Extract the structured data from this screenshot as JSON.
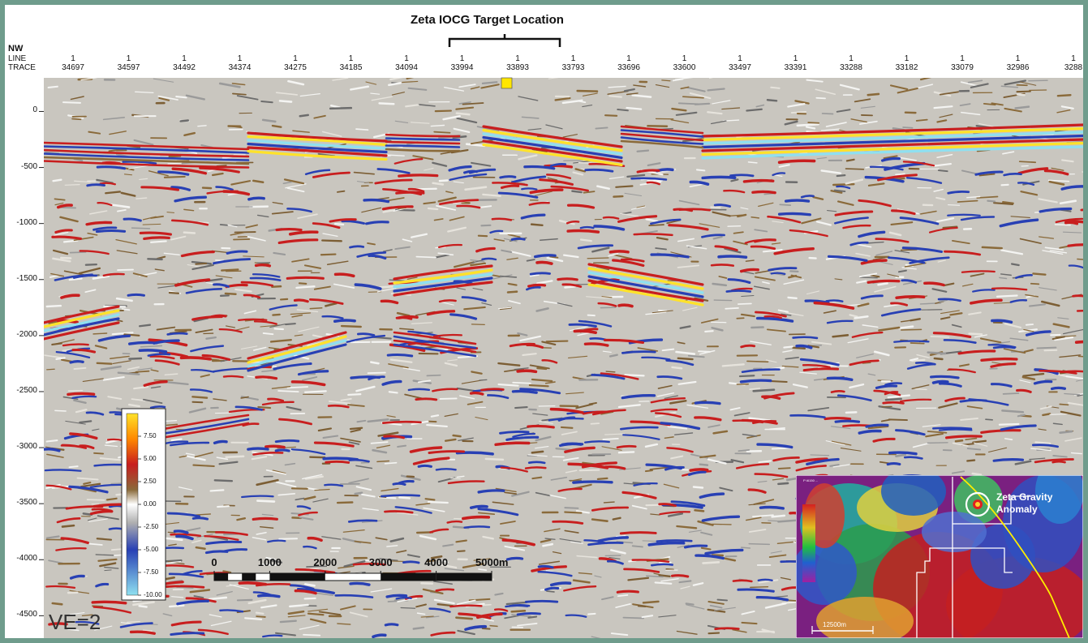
{
  "title": "Zeta IOCG Target Location",
  "direction": "NW",
  "row_labels": {
    "line": "LINE",
    "trace": "TRACE"
  },
  "ve_label": "VE=2",
  "colors": {
    "frame": "#6f9c8c",
    "red": "#c81e1e",
    "blue": "#2840b4",
    "yellow": "#ffe22a",
    "cyan": "#8fe0f0",
    "brown": "#8a6a3a"
  },
  "chart_data": [
    {
      "type": "heatmap",
      "subtype": "seismic-section",
      "title": "Zeta IOCG Target Location",
      "xlabel": "TRACE",
      "ylabel": "",
      "line_values": [
        "1",
        "1",
        "1",
        "1",
        "1",
        "1",
        "1",
        "1",
        "1",
        "1",
        "1",
        "1",
        "1",
        "1",
        "1",
        "1",
        "1",
        "1",
        "1"
      ],
      "trace_ticks": [
        "34697",
        "34597",
        "34492",
        "34374",
        "34275",
        "34185",
        "34094",
        "33994",
        "33893",
        "33793",
        "33696",
        "33600",
        "33497",
        "33391",
        "33288",
        "33182",
        "33079",
        "32986",
        "3288"
      ],
      "y_ticks": [
        0,
        -500,
        -1000,
        -1500,
        -2000,
        -2500,
        -3000,
        -3500,
        -4000,
        -4500
      ],
      "ylim": [
        -4700,
        300
      ],
      "target_marker_trace": "33893",
      "colorbar": {
        "ticks": [
          "7.50",
          "5.00",
          "2.50",
          "0.00",
          "-2.50",
          "-5.00",
          "-7.50",
          "-10.00"
        ],
        "range": [
          -10,
          10
        ],
        "palette": [
          "#8fe0f0",
          "#2840b4",
          "#b0b0b0",
          "#ffffff",
          "#8a6a3a",
          "#c81e1e",
          "#ff8800",
          "#ffe22a"
        ]
      },
      "scale_bar": {
        "ticks": [
          "0",
          "1000",
          "2000",
          "3000",
          "4000",
          "5000m"
        ],
        "max": 5000,
        "unit": "m"
      },
      "vertical_exaggeration": "VE=2"
    },
    {
      "type": "heatmap",
      "subtype": "gravity-map-inset",
      "annotation": "Zeta Gravity Anomaly",
      "scale_label": "12500m",
      "map_title": "P:\\6150 ..."
    }
  ]
}
